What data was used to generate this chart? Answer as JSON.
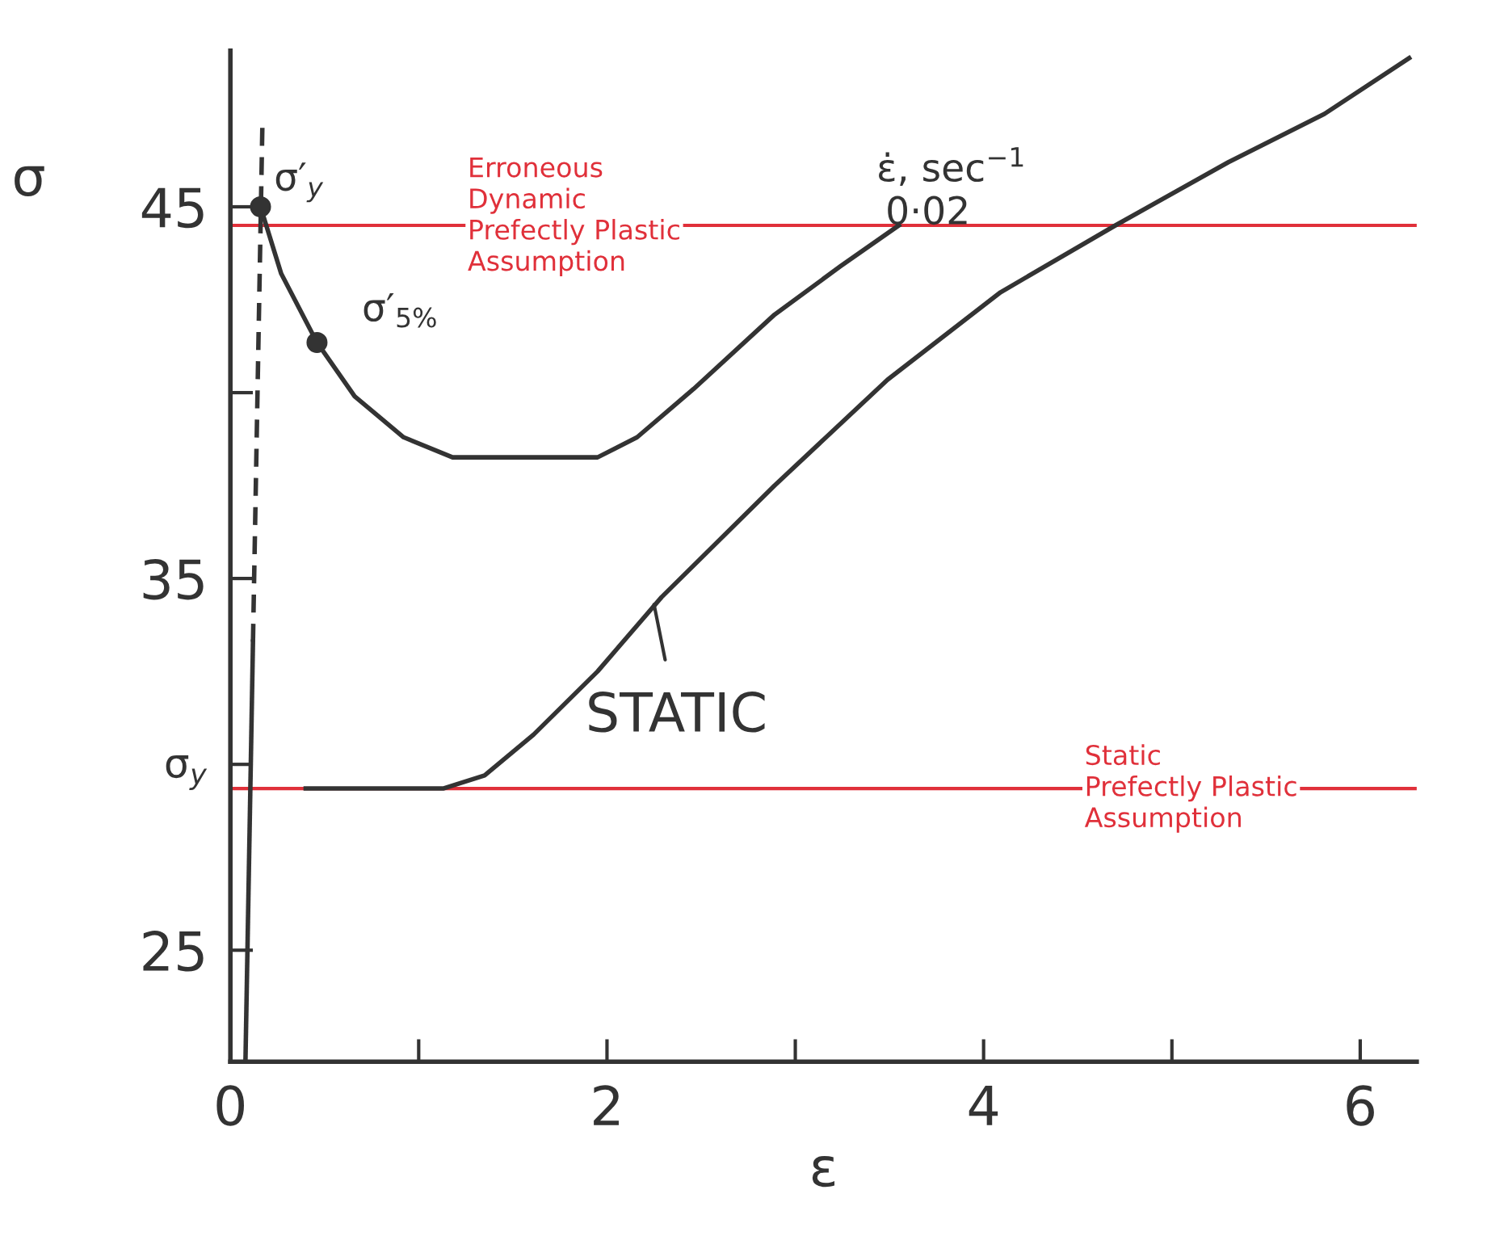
{
  "chart_data": {
    "type": "line",
    "xlabel": "ε",
    "ylabel": "σ",
    "xlim": [
      0,
      6.3
    ],
    "ylim": [
      22,
      49.2
    ],
    "xticks": [
      0,
      {
        "value": 1,
        "label": null
      },
      2,
      {
        "value": 3,
        "label": null
      },
      4,
      {
        "value": 5,
        "label": null
      },
      6
    ],
    "yticks": [
      25,
      {
        "value": 30,
        "label": "σ$_{y}$"
      },
      35,
      {
        "value": 40,
        "label": null
      },
      45
    ],
    "grid": false,
    "legend": false,
    "series": [
      {
        "color": "#333333",
        "line_style": "solid",
        "x": [
          0.08,
          0.12
        ],
        "values": [
          22,
          33.3
        ]
      },
      {
        "color": "#333333",
        "line_style": "dashed",
        "x": [
          0.12,
          0.17
        ],
        "values": [
          33.3,
          47.2
        ]
      },
      {
        "color": "#333333",
        "line_style": "solid",
        "x": [
          0.16,
          0.27,
          0.46,
          0.66,
          0.92,
          1.18,
          1.95,
          2.16,
          2.46,
          2.89,
          3.24,
          3.55
        ],
        "values": [
          45,
          43.2,
          41.35,
          39.9,
          38.8,
          38.26,
          38.26,
          38.8,
          40.1,
          42.1,
          43.4,
          44.5
        ]
      },
      {
        "color": "#333333",
        "line_style": "solid",
        "x": [
          0.4,
          1.13,
          1.35,
          1.61,
          1.95,
          2.29,
          2.89,
          3.49,
          4.09,
          4.7,
          5.3,
          5.81,
          6.26
        ],
        "values": [
          29.35,
          29.35,
          29.7,
          30.8,
          32.5,
          34.5,
          37.5,
          40.35,
          42.7,
          44.5,
          46.2,
          47.5,
          49
        ]
      },
      {
        "type": "scatter",
        "color": "#333333",
        "marker": "circle",
        "x": [
          0.16,
          0.46
        ],
        "values": [
          45,
          41.35
        ]
      }
    ],
    "ref_lines": [
      {
        "axis": "y",
        "value": 44.5,
        "label": "Erroneous\nDynamic\nPrefectly Plastic\nAssumption",
        "color": "#e0303a",
        "line_style": "solid"
      },
      {
        "axis": "y",
        "value": 29.35,
        "label": "Static\nPrefectly Plastic\nAssumption",
        "color": "#e0303a",
        "line_style": "solid"
      }
    ],
    "annotations": [
      {
        "text": "σ′$_{y}$",
        "x": 0.16,
        "y": 45
      },
      {
        "text": "σ′$_{5%}$",
        "x": 0.46,
        "y": 41.35
      },
      {
        "text": "ε̇, sec$^{−1}$",
        "x": 3.55,
        "y": 44.5
      },
      {
        "text": "0·02",
        "x": 3.55,
        "y": 44.5
      },
      {
        "text": "STATIC",
        "x": 2.25,
        "y": 34.3
      }
    ]
  }
}
